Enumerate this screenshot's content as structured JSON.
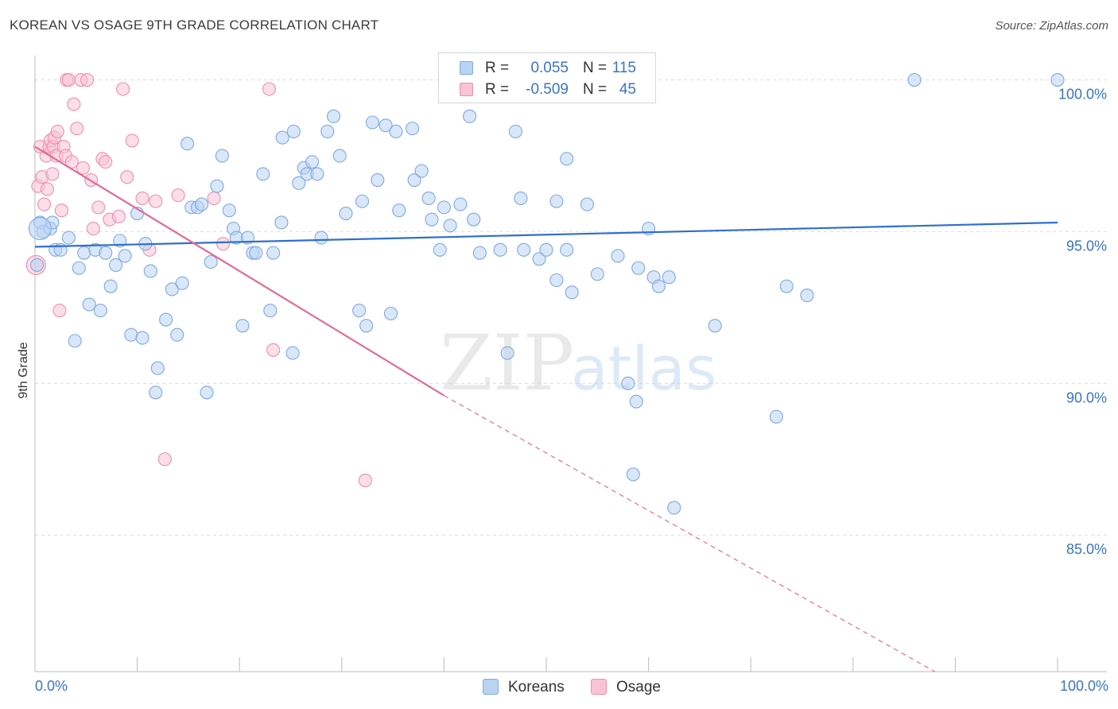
{
  "title": "KOREAN VS OSAGE 9TH GRADE CORRELATION CHART",
  "source": "Source: ZipAtlas.com",
  "watermark": {
    "zip": "ZIP",
    "atlas": "atlas"
  },
  "colors": {
    "korean_fill": "#b9d3f3",
    "korean_stroke": "#7ea9e1",
    "korean_line": "#2f6fcc",
    "osage_fill": "#f8c3d4",
    "osage_stroke": "#ee8fb0",
    "osage_line": "#e46a96",
    "axis_text": "#3a74c4",
    "grid": "#dddddd"
  },
  "legend_top": {
    "rows": [
      {
        "r_label": "R =",
        "r_value": "0.055",
        "n_label": "N =",
        "n_value": "115"
      },
      {
        "r_label": "R =",
        "r_value": "-0.509",
        "n_label": "N =",
        "n_value": "45"
      }
    ]
  },
  "legend_bottom": {
    "koreans": "Koreans",
    "osage": "Osage"
  },
  "chart_data": {
    "type": "scatter",
    "title": "KOREAN VS OSAGE 9TH GRADE CORRELATION CHART",
    "ylabel": "9th Grade",
    "xlabel": "",
    "x_tick_labels": {
      "left": "0.0%",
      "right": "100.0%"
    },
    "y_tick_labels": [
      "100.0%",
      "95.0%",
      "90.0%",
      "85.0%"
    ],
    "y_ticks": [
      100,
      95,
      90,
      85
    ],
    "xlim": [
      0,
      100
    ],
    "ylim": [
      80.5,
      100.8
    ],
    "grid": true,
    "legend_position": "bottom",
    "series": [
      {
        "name": "Koreans",
        "trend": {
          "x": [
            0,
            100
          ],
          "y": [
            94.5,
            95.3
          ]
        },
        "points": [
          [
            0.5,
            95.3
          ],
          [
            0.8,
            95.0
          ],
          [
            1.5,
            95.1
          ],
          [
            1.7,
            95.3
          ],
          [
            2.0,
            94.4
          ],
          [
            2.5,
            94.4
          ],
          [
            3.3,
            94.8
          ],
          [
            3.9,
            91.4
          ],
          [
            4.3,
            93.8
          ],
          [
            4.8,
            94.3
          ],
          [
            5.3,
            92.6
          ],
          [
            5.9,
            94.4
          ],
          [
            6.4,
            92.4
          ],
          [
            6.9,
            94.3
          ],
          [
            7.4,
            93.2
          ],
          [
            7.9,
            93.9
          ],
          [
            8.3,
            94.7
          ],
          [
            8.8,
            94.2
          ],
          [
            9.4,
            91.6
          ],
          [
            10.0,
            95.6
          ],
          [
            10.5,
            91.5
          ],
          [
            10.8,
            94.6
          ],
          [
            11.3,
            93.7
          ],
          [
            11.8,
            89.7
          ],
          [
            12.0,
            90.5
          ],
          [
            12.8,
            92.1
          ],
          [
            13.4,
            93.1
          ],
          [
            13.9,
            91.6
          ],
          [
            14.4,
            93.3
          ],
          [
            14.9,
            97.9
          ],
          [
            15.3,
            95.8
          ],
          [
            15.9,
            95.8
          ],
          [
            16.3,
            95.9
          ],
          [
            16.8,
            89.7
          ],
          [
            17.2,
            94.0
          ],
          [
            17.8,
            96.5
          ],
          [
            18.3,
            97.5
          ],
          [
            19.0,
            95.7
          ],
          [
            19.4,
            95.1
          ],
          [
            19.7,
            94.8
          ],
          [
            20.3,
            91.9
          ],
          [
            20.8,
            94.8
          ],
          [
            21.3,
            94.3
          ],
          [
            21.6,
            94.3
          ],
          [
            22.3,
            96.9
          ],
          [
            23.0,
            92.4
          ],
          [
            23.3,
            94.3
          ],
          [
            24.1,
            95.3
          ],
          [
            24.2,
            98.1
          ],
          [
            25.2,
            91.0
          ],
          [
            25.3,
            98.3
          ],
          [
            25.8,
            96.6
          ],
          [
            26.3,
            97.1
          ],
          [
            26.6,
            96.9
          ],
          [
            27.1,
            97.3
          ],
          [
            27.6,
            96.9
          ],
          [
            28.0,
            94.8
          ],
          [
            28.6,
            98.3
          ],
          [
            29.2,
            98.8
          ],
          [
            29.8,
            97.5
          ],
          [
            30.4,
            95.6
          ],
          [
            31.7,
            92.4
          ],
          [
            32.0,
            96.0
          ],
          [
            32.4,
            91.9
          ],
          [
            33.0,
            98.6
          ],
          [
            33.5,
            96.7
          ],
          [
            34.3,
            98.5
          ],
          [
            34.8,
            92.3
          ],
          [
            35.3,
            98.3
          ],
          [
            35.6,
            95.7
          ],
          [
            36.9,
            98.4
          ],
          [
            37.1,
            96.7
          ],
          [
            37.8,
            97.0
          ],
          [
            38.5,
            96.1
          ],
          [
            38.8,
            95.4
          ],
          [
            39.6,
            94.4
          ],
          [
            40.0,
            95.8
          ],
          [
            40.6,
            95.2
          ],
          [
            41.0,
            100.0
          ],
          [
            41.6,
            95.9
          ],
          [
            42.5,
            98.8
          ],
          [
            42.9,
            95.4
          ],
          [
            43.5,
            94.3
          ],
          [
            45.5,
            94.4
          ],
          [
            46.2,
            91.0
          ],
          [
            47.0,
            98.3
          ],
          [
            47.5,
            96.1
          ],
          [
            47.8,
            94.4
          ],
          [
            49.3,
            94.1
          ],
          [
            49.9,
            100.0
          ],
          [
            50.0,
            94.4
          ],
          [
            51.0,
            96.0
          ],
          [
            51.0,
            93.4
          ],
          [
            52.0,
            97.4
          ],
          [
            52.0,
            94.4
          ],
          [
            52.5,
            93.0
          ],
          [
            54.0,
            95.9
          ],
          [
            55.0,
            93.6
          ],
          [
            57.0,
            94.2
          ],
          [
            58.0,
            90.0
          ],
          [
            58.5,
            87.0
          ],
          [
            58.8,
            89.4
          ],
          [
            59.0,
            93.8
          ],
          [
            60.0,
            95.1
          ],
          [
            60.5,
            93.5
          ],
          [
            61.0,
            93.2
          ],
          [
            62.0,
            93.5
          ],
          [
            62.5,
            85.9
          ],
          [
            66.5,
            91.9
          ],
          [
            72.5,
            88.9
          ],
          [
            73.5,
            93.2
          ],
          [
            75.5,
            92.9
          ],
          [
            86.0,
            100.0
          ],
          [
            100.0,
            100.0
          ],
          [
            0.2,
            93.9
          ]
        ]
      },
      {
        "name": "Osage",
        "trend": {
          "x": [
            0,
            40
          ],
          "y": [
            97.8,
            89.6
          ]
        },
        "trend_dashed": {
          "x": [
            40,
            88
          ],
          "y": [
            89.6,
            80.5
          ]
        },
        "points": [
          [
            0.3,
            96.5
          ],
          [
            0.5,
            97.8
          ],
          [
            0.7,
            96.8
          ],
          [
            0.9,
            95.9
          ],
          [
            1.1,
            97.5
          ],
          [
            1.2,
            96.4
          ],
          [
            1.4,
            97.8
          ],
          [
            1.5,
            98.0
          ],
          [
            1.7,
            96.9
          ],
          [
            1.8,
            97.8
          ],
          [
            1.9,
            98.1
          ],
          [
            2.1,
            97.5
          ],
          [
            2.2,
            98.3
          ],
          [
            2.4,
            92.4
          ],
          [
            2.6,
            95.7
          ],
          [
            2.8,
            97.8
          ],
          [
            3.0,
            97.5
          ],
          [
            3.1,
            100.0
          ],
          [
            3.3,
            100.0
          ],
          [
            3.6,
            97.3
          ],
          [
            3.8,
            99.2
          ],
          [
            4.1,
            98.4
          ],
          [
            4.5,
            100.0
          ],
          [
            4.7,
            97.1
          ],
          [
            5.1,
            100.0
          ],
          [
            5.5,
            96.7
          ],
          [
            5.7,
            95.1
          ],
          [
            6.2,
            95.8
          ],
          [
            6.6,
            97.4
          ],
          [
            6.9,
            97.3
          ],
          [
            7.3,
            95.4
          ],
          [
            8.2,
            95.5
          ],
          [
            8.6,
            99.7
          ],
          [
            9.0,
            96.8
          ],
          [
            9.5,
            98.0
          ],
          [
            10.5,
            96.1
          ],
          [
            11.2,
            94.4
          ],
          [
            11.8,
            96.0
          ],
          [
            12.7,
            87.5
          ],
          [
            14.0,
            96.2
          ],
          [
            17.5,
            96.1
          ],
          [
            18.4,
            94.6
          ],
          [
            22.9,
            99.7
          ],
          [
            23.3,
            91.1
          ],
          [
            32.3,
            86.8
          ]
        ]
      }
    ]
  }
}
